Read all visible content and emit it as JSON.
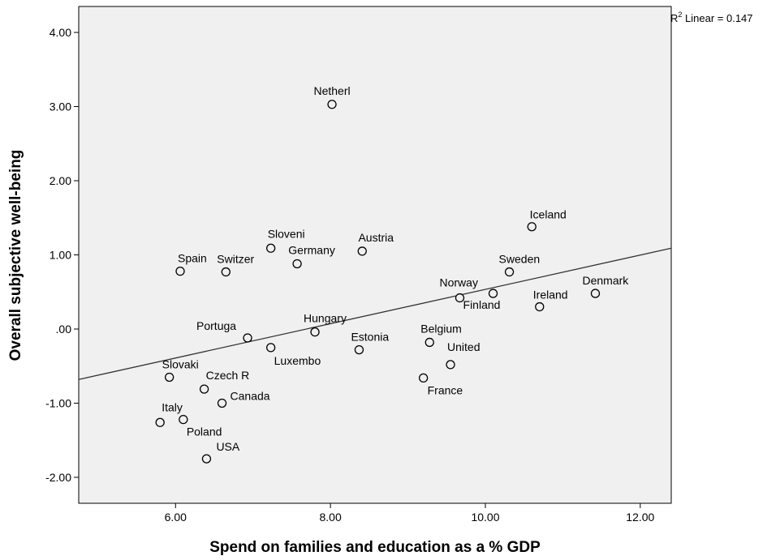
{
  "chart_data": {
    "type": "scatter",
    "xlabel": "Spend on families and education as a % GDP",
    "ylabel": "Overall subjective well-being",
    "xlim": [
      4.75,
      12.4
    ],
    "ylim": [
      -2.35,
      4.35
    ],
    "xticks": [
      6.0,
      8.0,
      10.0,
      12.0
    ],
    "xtick_labels": [
      "6.00",
      "8.00",
      "10.00",
      "12.00"
    ],
    "yticks": [
      -2.0,
      -1.0,
      0.0,
      1.0,
      2.0,
      3.0,
      4.0
    ],
    "ytick_labels": [
      "-2.00",
      "-1.00",
      ".00",
      "1.00",
      "2.00",
      "3.00",
      "4.00"
    ],
    "grid": false,
    "plot_background": "#f0f0f0",
    "marker_color": "#000000",
    "marker_fill": "#f0f0f0",
    "fit_line": {
      "label_prefix": "R",
      "label_sup": "2",
      "label_suffix": " Linear = 0.147",
      "x": [
        4.75,
        12.4
      ],
      "y": [
        -0.68,
        1.09
      ]
    },
    "points": [
      {
        "label": "Netherl",
        "x": 8.02,
        "y": 3.03
      },
      {
        "label": "Iceland",
        "x": 10.6,
        "y": 1.38
      },
      {
        "label": "Sloveni",
        "x": 7.23,
        "y": 1.09
      },
      {
        "label": "Austria",
        "x": 8.41,
        "y": 1.05
      },
      {
        "label": "Germany",
        "x": 7.57,
        "y": 0.88
      },
      {
        "label": "Spain",
        "x": 6.06,
        "y": 0.78
      },
      {
        "label": "Switzer",
        "x": 6.65,
        "y": 0.77
      },
      {
        "label": "Sweden",
        "x": 10.31,
        "y": 0.77
      },
      {
        "label": "Denmark",
        "x": 11.42,
        "y": 0.48
      },
      {
        "label": "Finland",
        "x": 10.1,
        "y": 0.48
      },
      {
        "label": "Norway",
        "x": 9.67,
        "y": 0.42
      },
      {
        "label": "Ireland",
        "x": 10.7,
        "y": 0.3
      },
      {
        "label": "Hungary",
        "x": 7.8,
        "y": -0.04
      },
      {
        "label": "Portuga",
        "x": 6.93,
        "y": -0.12
      },
      {
        "label": "Belgium",
        "x": 9.28,
        "y": -0.18
      },
      {
        "label": "Luxembo",
        "x": 7.23,
        "y": -0.25
      },
      {
        "label": "Estonia",
        "x": 8.37,
        "y": -0.28
      },
      {
        "label": "United",
        "x": 9.55,
        "y": -0.48
      },
      {
        "label": "Slovaki",
        "x": 5.92,
        "y": -0.65
      },
      {
        "label": "France",
        "x": 9.2,
        "y": -0.66
      },
      {
        "label": "Czech R",
        "x": 6.37,
        "y": -0.81
      },
      {
        "label": "Canada",
        "x": 6.6,
        "y": -1.0
      },
      {
        "label": "Italy",
        "x": 5.8,
        "y": -1.26
      },
      {
        "label": "Poland",
        "x": 6.1,
        "y": -1.22
      },
      {
        "label": "USA",
        "x": 6.4,
        "y": -1.75
      }
    ]
  }
}
